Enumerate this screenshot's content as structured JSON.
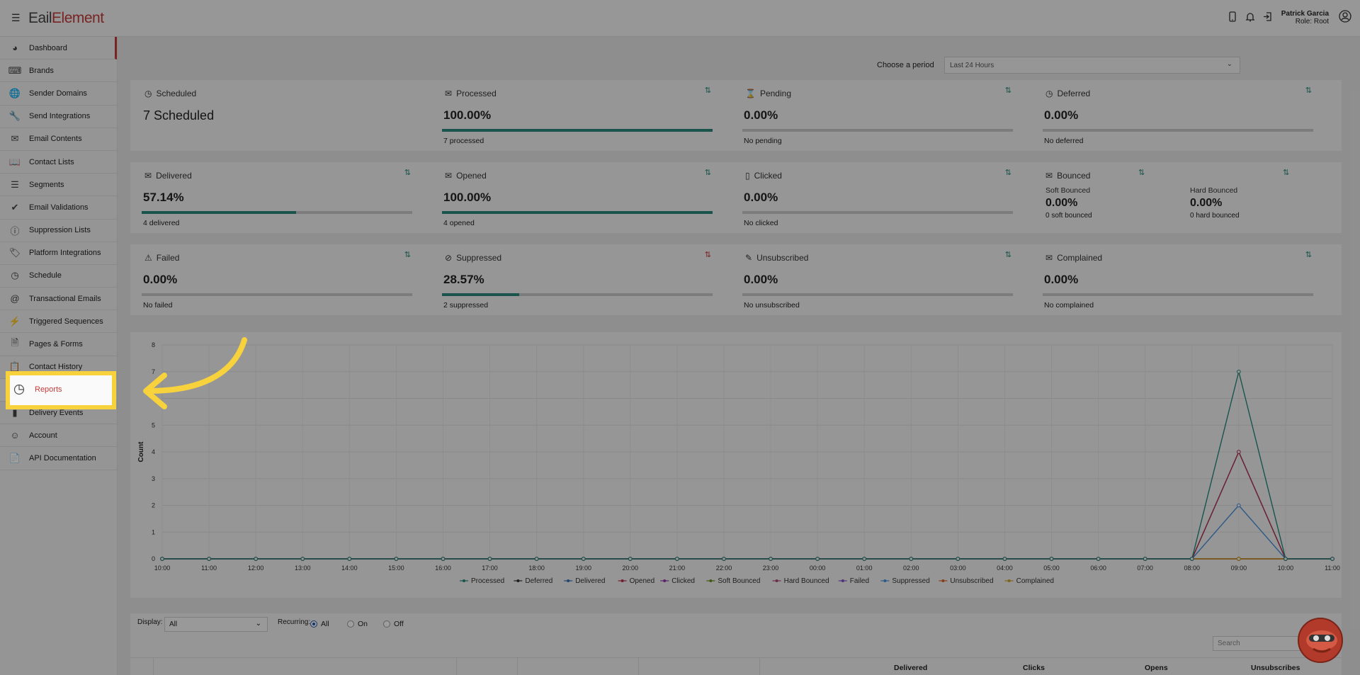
{
  "app": {
    "logo_part1": "E",
    "logo_part2": "ail",
    "logo_part3": "Element",
    "user_name": "Patrick Garcia",
    "user_role": "Role: Root"
  },
  "sidebar": {
    "items": [
      {
        "label": "Dashboard",
        "icon": "gauge-icon"
      },
      {
        "label": "Brands",
        "icon": "keyboard-icon"
      },
      {
        "label": "Sender Domains",
        "icon": "globe-icon"
      },
      {
        "label": "Send Integrations",
        "icon": "wrench-icon"
      },
      {
        "label": "Email Contents",
        "icon": "envelope-icon"
      },
      {
        "label": "Contact Lists",
        "icon": "contact-book-icon"
      },
      {
        "label": "Segments",
        "icon": "list-icon"
      },
      {
        "label": "Email Validations",
        "icon": "check-circle-icon"
      },
      {
        "label": "Suppression Lists",
        "icon": "exclamation-circle-icon"
      },
      {
        "label": "Platform Integrations",
        "icon": "tag-icon"
      },
      {
        "label": "Schedule",
        "icon": "clock-icon"
      },
      {
        "label": "Transactional Emails",
        "icon": "at-icon"
      },
      {
        "label": "Triggered Sequences",
        "icon": "bolt-icon"
      },
      {
        "label": "Pages & Forms",
        "icon": "document-icon"
      },
      {
        "label": "Contact History",
        "icon": "clipboard-icon"
      },
      {
        "label": "Reports",
        "icon": "pie-chart-icon"
      },
      {
        "label": "Delivery Events",
        "icon": "bars-icon"
      },
      {
        "label": "Account",
        "icon": "user-circle-icon"
      },
      {
        "label": "API Documentation",
        "icon": "api-doc-icon"
      }
    ]
  },
  "period": {
    "label": "Choose a period",
    "value": "Last 24 Hours"
  },
  "cards": {
    "scheduled": {
      "title": "Scheduled",
      "value": "7 Scheduled"
    },
    "processed": {
      "title": "Processed",
      "value": "100.00%",
      "sub": "7 processed",
      "fill": 1.0
    },
    "pending": {
      "title": "Pending",
      "value": "0.00%",
      "sub": "No pending",
      "fill": 0
    },
    "deferred": {
      "title": "Deferred",
      "value": "0.00%",
      "sub": "No deferred",
      "fill": 0
    },
    "delivered": {
      "title": "Delivered",
      "value": "57.14%",
      "sub": "4 delivered",
      "fill": 0.5714
    },
    "opened": {
      "title": "Opened",
      "value": "100.00%",
      "sub": "4 opened",
      "fill": 1.0
    },
    "clicked": {
      "title": "Clicked",
      "value": "0.00%",
      "sub": "No clicked",
      "fill": 0
    },
    "bounced": {
      "title": "Bounced",
      "soft_label": "Soft Bounced",
      "soft_value": "0.00%",
      "soft_sub": "0 soft bounced",
      "hard_label": "Hard Bounced",
      "hard_value": "0.00%",
      "hard_sub": "0 hard bounced"
    },
    "failed": {
      "title": "Failed",
      "value": "0.00%",
      "sub": "No failed",
      "fill": 0
    },
    "suppressed": {
      "title": "Suppressed",
      "value": "28.57%",
      "sub": "2 suppressed",
      "fill": 0.2857
    },
    "unsubscribed": {
      "title": "Unsubscribed",
      "value": "0.00%",
      "sub": "No unsubscribed",
      "fill": 0
    },
    "complained": {
      "title": "Complained",
      "value": "0.00%",
      "sub": "No complained",
      "fill": 0
    }
  },
  "chart_data": {
    "type": "line",
    "ylabel": "Count",
    "ylim": [
      0,
      8
    ],
    "yticks": [
      "0",
      "1",
      "2",
      "3",
      "4",
      "5",
      "6",
      "7",
      "8"
    ],
    "categories": [
      "10:00",
      "11:00",
      "12:00",
      "13:00",
      "14:00",
      "15:00",
      "16:00",
      "17:00",
      "18:00",
      "19:00",
      "20:00",
      "21:00",
      "22:00",
      "23:00",
      "00:00",
      "01:00",
      "02:00",
      "03:00",
      "04:00",
      "05:00",
      "06:00",
      "07:00",
      "08:00",
      "09:00",
      "10:00",
      "11:00"
    ],
    "legend_position": "bottom",
    "series": [
      {
        "name": "Processed",
        "color": "#27887a",
        "values": [
          0,
          0,
          0,
          0,
          0,
          0,
          0,
          0,
          0,
          0,
          0,
          0,
          0,
          0,
          0,
          0,
          0,
          0,
          0,
          0,
          0,
          0,
          0,
          7,
          0,
          0
        ]
      },
      {
        "name": "Deferred",
        "color": "#333333",
        "values": [
          0,
          0,
          0,
          0,
          0,
          0,
          0,
          0,
          0,
          0,
          0,
          0,
          0,
          0,
          0,
          0,
          0,
          0,
          0,
          0,
          0,
          0,
          0,
          0,
          0,
          0
        ]
      },
      {
        "name": "Delivered",
        "color": "#3b6fb5",
        "values": [
          0,
          0,
          0,
          0,
          0,
          0,
          0,
          0,
          0,
          0,
          0,
          0,
          0,
          0,
          0,
          0,
          0,
          0,
          0,
          0,
          0,
          0,
          0,
          4,
          0,
          0
        ]
      },
      {
        "name": "Opened",
        "color": "#b5334d",
        "values": [
          0,
          0,
          0,
          0,
          0,
          0,
          0,
          0,
          0,
          0,
          0,
          0,
          0,
          0,
          0,
          0,
          0,
          0,
          0,
          0,
          0,
          0,
          0,
          4,
          0,
          0
        ]
      },
      {
        "name": "Clicked",
        "color": "#8e3ba8",
        "values": [
          0,
          0,
          0,
          0,
          0,
          0,
          0,
          0,
          0,
          0,
          0,
          0,
          0,
          0,
          0,
          0,
          0,
          0,
          0,
          0,
          0,
          0,
          0,
          0,
          0,
          0
        ]
      },
      {
        "name": "Soft Bounced",
        "color": "#6b8e23",
        "values": [
          0,
          0,
          0,
          0,
          0,
          0,
          0,
          0,
          0,
          0,
          0,
          0,
          0,
          0,
          0,
          0,
          0,
          0,
          0,
          0,
          0,
          0,
          0,
          0,
          0,
          0
        ]
      },
      {
        "name": "Hard Bounced",
        "color": "#b04a7a",
        "values": [
          0,
          0,
          0,
          0,
          0,
          0,
          0,
          0,
          0,
          0,
          0,
          0,
          0,
          0,
          0,
          0,
          0,
          0,
          0,
          0,
          0,
          0,
          0,
          0,
          0,
          0
        ]
      },
      {
        "name": "Failed",
        "color": "#7b55c7",
        "values": [
          0,
          0,
          0,
          0,
          0,
          0,
          0,
          0,
          0,
          0,
          0,
          0,
          0,
          0,
          0,
          0,
          0,
          0,
          0,
          0,
          0,
          0,
          0,
          0,
          0,
          0
        ]
      },
      {
        "name": "Suppressed",
        "color": "#4a90d9",
        "values": [
          0,
          0,
          0,
          0,
          0,
          0,
          0,
          0,
          0,
          0,
          0,
          0,
          0,
          0,
          0,
          0,
          0,
          0,
          0,
          0,
          0,
          0,
          0,
          2,
          0,
          0
        ]
      },
      {
        "name": "Unsubscribed",
        "color": "#d9662b",
        "values": [
          0,
          0,
          0,
          0,
          0,
          0,
          0,
          0,
          0,
          0,
          0,
          0,
          0,
          0,
          0,
          0,
          0,
          0,
          0,
          0,
          0,
          0,
          0,
          0,
          0,
          0
        ]
      },
      {
        "name": "Complained",
        "color": "#c9a227",
        "values": [
          0,
          0,
          0,
          0,
          0,
          0,
          0,
          0,
          0,
          0,
          0,
          0,
          0,
          0,
          0,
          0,
          0,
          0,
          0,
          0,
          0,
          0,
          0,
          0,
          0,
          0
        ]
      }
    ]
  },
  "filters": {
    "display_label": "Display:",
    "display_value": "All",
    "recurring_label": "Recurring:",
    "radio_all": "All",
    "radio_on": "On",
    "radio_off": "Off",
    "search_placeholder": "Search"
  },
  "table": {
    "headers": [
      "Delivered",
      "Clicks",
      "Opens",
      "Unsubscribes"
    ]
  },
  "colors": {
    "accent": "#c23b3b",
    "progress": "#27887a",
    "highlight": "#f7d23c"
  }
}
